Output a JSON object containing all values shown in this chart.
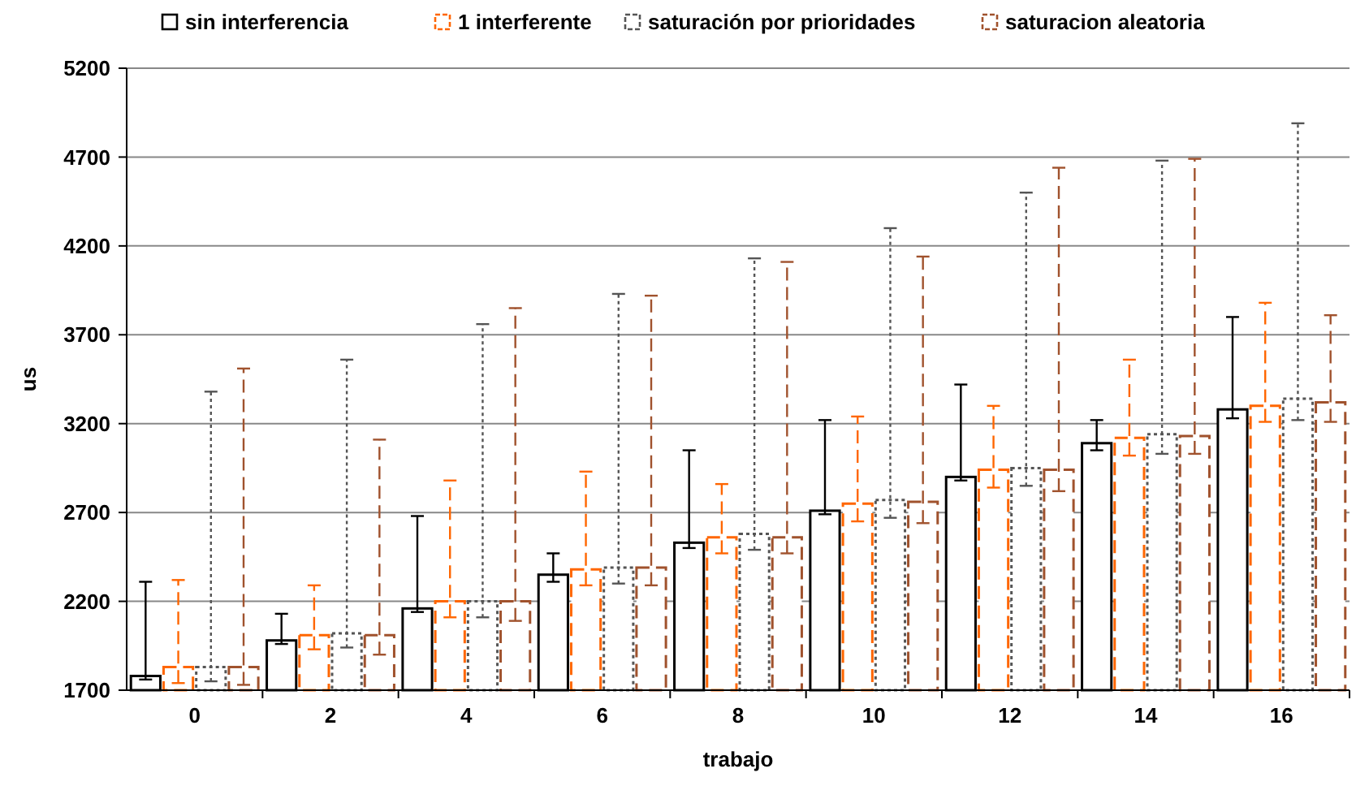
{
  "chart_data": {
    "type": "bar",
    "xlabel": "trabajo",
    "ylabel": "us",
    "categories": [
      "0",
      "2",
      "4",
      "6",
      "8",
      "10",
      "12",
      "14",
      "16"
    ],
    "ylim": [
      1700,
      5200
    ],
    "yticks": [
      1700,
      2200,
      2700,
      3200,
      3700,
      4200,
      4700,
      5200
    ],
    "grid": "y",
    "legend": "top",
    "series": [
      {
        "name": "sin interferencia",
        "color": "#000000",
        "line_style": "solid",
        "values": [
          1780,
          1980,
          2160,
          2350,
          2530,
          2710,
          2900,
          3090,
          3280
        ],
        "errors": [
          [
            1760,
            2310
          ],
          [
            1960,
            2130
          ],
          [
            2140,
            2680
          ],
          [
            2310,
            2470
          ],
          [
            2500,
            3050
          ],
          [
            2690,
            3220
          ],
          [
            2880,
            3420
          ],
          [
            3050,
            3220
          ],
          [
            3230,
            3800
          ]
        ]
      },
      {
        "name": "1 interferente",
        "color": "#ff6600",
        "line_style": "dashed",
        "values": [
          1830,
          2010,
          2200,
          2380,
          2560,
          2750,
          2940,
          3120,
          3300
        ],
        "errors": [
          [
            1740,
            2320
          ],
          [
            1930,
            2290
          ],
          [
            2110,
            2880
          ],
          [
            2290,
            2930
          ],
          [
            2470,
            2860
          ],
          [
            2650,
            3240
          ],
          [
            2840,
            3300
          ],
          [
            3020,
            3560
          ],
          [
            3210,
            3880
          ]
        ]
      },
      {
        "name": "saturación por prioridades",
        "color": "#555555",
        "line_style": "dotted",
        "values": [
          1830,
          2020,
          2200,
          2390,
          2580,
          2770,
          2950,
          3140,
          3340
        ],
        "errors": [
          [
            1750,
            3380
          ],
          [
            1940,
            3560
          ],
          [
            2110,
            3760
          ],
          [
            2300,
            3930
          ],
          [
            2490,
            4130
          ],
          [
            2670,
            4300
          ],
          [
            2850,
            4500
          ],
          [
            3030,
            4680
          ],
          [
            3220,
            4890
          ]
        ]
      },
      {
        "name": "saturacion aleatoria",
        "color": "#a0522d",
        "line_style": "dashed",
        "values": [
          1830,
          2010,
          2200,
          2390,
          2560,
          2760,
          2940,
          3130,
          3320
        ],
        "errors": [
          [
            1730,
            3510
          ],
          [
            1900,
            3110
          ],
          [
            2090,
            3850
          ],
          [
            2290,
            3920
          ],
          [
            2470,
            4110
          ],
          [
            2640,
            4140
          ],
          [
            2820,
            4640
          ],
          [
            3030,
            4690
          ],
          [
            3210,
            3810
          ]
        ]
      }
    ]
  }
}
